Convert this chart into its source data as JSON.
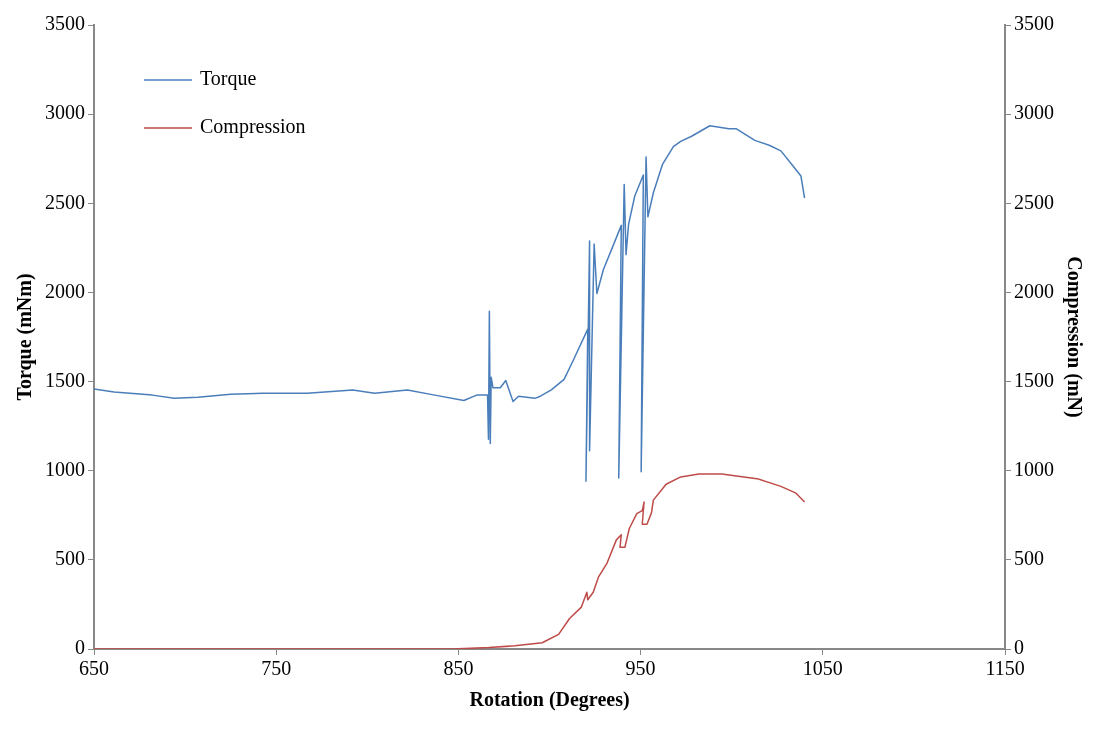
{
  "chart_data": {
    "type": "line",
    "xlabel": "Rotation (Degrees)",
    "ylabel": "Torque (mNm)",
    "y2label": "Compression (mN)",
    "xlim": [
      650,
      1150
    ],
    "xticks": [
      650,
      750,
      850,
      950,
      1050,
      1150
    ],
    "ylim": [
      0,
      3500
    ],
    "yticks": [
      0,
      500,
      1000,
      1500,
      2000,
      2500,
      3000,
      3500
    ],
    "y2lim": [
      0,
      3500
    ],
    "y2ticks": [
      0,
      500,
      1000,
      1500,
      2000,
      2500,
      3000,
      3500
    ],
    "legend": "top left",
    "grid": false,
    "marker": "none",
    "line_style": "solid",
    "series": [
      {
        "name": "Torque",
        "color": "#4a7ebb",
        "x": [
          650,
          661,
          682,
          694,
          707,
          725,
          743,
          767,
          792,
          804,
          822,
          837,
          853,
          860,
          866,
          866.5,
          867,
          867.5,
          868,
          869,
          873,
          876,
          880,
          883,
          892,
          895,
          901,
          908,
          913,
          921,
          920,
          922,
          922,
          924.5,
          926,
          929.6,
          933.6,
          939.4,
          938,
          941,
          942,
          943.4,
          946.8,
          951.5,
          950.3,
          953,
          954,
          957,
          962,
          968,
          972,
          978,
          988,
          998.5,
          1002.6,
          1012.7,
          1020.9,
          1027,
          1033,
          1038,
          1040
        ],
        "values": [
          1459,
          1441,
          1424,
          1406,
          1412,
          1429,
          1435,
          1435,
          1453,
          1435,
          1453,
          1424,
          1394,
          1424,
          1424,
          1176,
          1894,
          1153,
          1524,
          1465,
          1465,
          1506,
          1388,
          1418,
          1406,
          1418,
          1453,
          1512,
          1618,
          1794,
          941,
          2288,
          1112,
          2271,
          1994,
          2129,
          2229,
          2376,
          959,
          2606,
          2212,
          2382,
          2541,
          2659,
          994,
          2759,
          2424,
          2559,
          2718,
          2818,
          2847,
          2876,
          2935,
          2918,
          2918,
          2853,
          2824,
          2794,
          2718,
          2653,
          2529
        ]
      },
      {
        "name": "Compression",
        "color": "#be4b48",
        "axis": "y2",
        "x": [
          650,
          846.5,
          866.7,
          881,
          896,
          905,
          911,
          917.5,
          920.5,
          921,
          924,
          927,
          931.6,
          936.7,
          939.4,
          938.7,
          941.4,
          943.8,
          947.9,
          950.9,
          951.9,
          950.9,
          953.5,
          956,
          957,
          964,
          972,
          982,
          994.5,
          1014.8,
          1027,
          1035,
          1040
        ],
        "values": [
          0,
          0,
          8,
          18,
          35,
          82,
          171,
          235,
          318,
          276,
          318,
          406,
          482,
          612,
          641,
          571,
          571,
          676,
          759,
          776,
          824,
          700,
          700,
          765,
          835,
          924,
          965,
          982,
          982,
          953,
          912,
          876,
          824
        ]
      }
    ]
  }
}
